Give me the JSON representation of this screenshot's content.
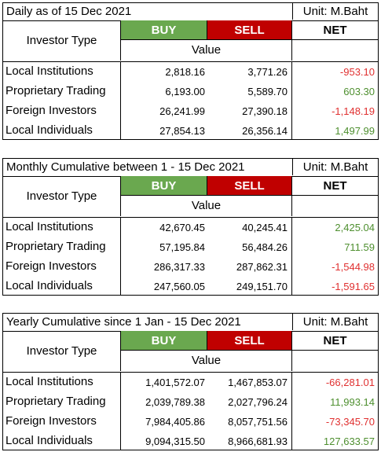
{
  "colors": {
    "buy_bg": "#6aa84f",
    "sell_bg": "#c00000",
    "negative": "#e03030",
    "positive": "#4e8f2f"
  },
  "column_headers": {
    "investor_type": "Investor Type",
    "buy": "BUY",
    "sell": "SELL",
    "net": "NET",
    "value": "Value"
  },
  "tables": [
    {
      "title": "Daily as of 15 Dec 2021",
      "unit": "Unit: M.Baht",
      "rows": [
        {
          "name": "Local Institutions",
          "buy": "2,818.16",
          "sell": "3,771.26",
          "net": "-953.10",
          "sign": "neg"
        },
        {
          "name": "Proprietary Trading",
          "buy": "6,193.00",
          "sell": "5,589.70",
          "net": "603.30",
          "sign": "pos"
        },
        {
          "name": "Foreign Investors",
          "buy": "26,241.99",
          "sell": "27,390.18",
          "net": "-1,148.19",
          "sign": "neg"
        },
        {
          "name": "Local Individuals",
          "buy": "27,854.13",
          "sell": "26,356.14",
          "net": "1,497.99",
          "sign": "pos"
        }
      ]
    },
    {
      "title": "Monthly Cumulative between 1 - 15 Dec 2021",
      "unit": "Unit: M.Baht",
      "rows": [
        {
          "name": "Local Institutions",
          "buy": "42,670.45",
          "sell": "40,245.41",
          "net": "2,425.04",
          "sign": "pos"
        },
        {
          "name": "Proprietary Trading",
          "buy": "57,195.84",
          "sell": "56,484.26",
          "net": "711.59",
          "sign": "pos"
        },
        {
          "name": "Foreign Investors",
          "buy": "286,317.33",
          "sell": "287,862.31",
          "net": "-1,544.98",
          "sign": "neg"
        },
        {
          "name": "Local Individuals",
          "buy": "247,560.05",
          "sell": "249,151.70",
          "net": "-1,591.65",
          "sign": "neg"
        }
      ]
    },
    {
      "title": "Yearly Cumulative since 1 Jan - 15 Dec 2021",
      "unit": "Unit: M.Baht",
      "rows": [
        {
          "name": "Local Institutions",
          "buy": "1,401,572.07",
          "sell": "1,467,853.07",
          "net": "-66,281.01",
          "sign": "neg"
        },
        {
          "name": "Proprietary Trading",
          "buy": "2,039,789.38",
          "sell": "2,027,796.24",
          "net": "11,993.14",
          "sign": "pos"
        },
        {
          "name": "Foreign Investors",
          "buy": "7,984,405.86",
          "sell": "8,057,751.56",
          "net": "-73,345.70",
          "sign": "neg"
        },
        {
          "name": "Local Individuals",
          "buy": "9,094,315.50",
          "sell": "8,966,681.93",
          "net": "127,633.57",
          "sign": "pos"
        }
      ]
    }
  ]
}
